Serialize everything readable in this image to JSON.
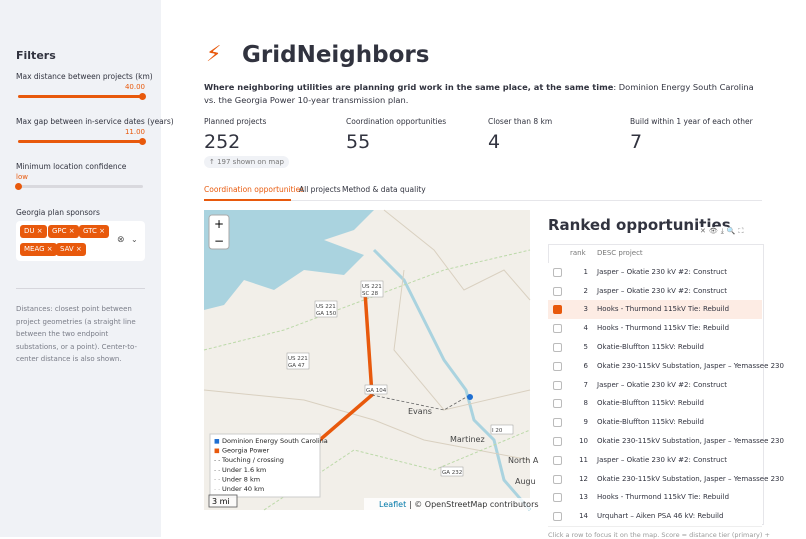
{
  "sidebar": {
    "title": "Filters",
    "sliders": [
      {
        "label": "Max distance between projects (km)",
        "value": "40.00"
      },
      {
        "label": "Max gap between in-service dates (years)",
        "value": "11.00"
      },
      {
        "label": "Minimum location confidence",
        "value": "low"
      }
    ],
    "sponsors": {
      "label": "Georgia plan sponsors",
      "chips": [
        "DU",
        "GPC",
        "GTC",
        "MEAG",
        "SAV"
      ]
    },
    "note": "Distances: closest point between project geometries (a straight line between the two endpoint substations, or a point). Center-to-center distance is also shown."
  },
  "header": {
    "title": "GridNeighbors",
    "description_bold": "Where neighboring utilities are planning grid work in the same place, at the same time",
    "description_rest": ": Dominion Energy South Carolina vs. the Georgia Power 10-year transmission plan."
  },
  "metrics": [
    {
      "label": "Planned projects",
      "value": 252,
      "delta": "197 shown on map"
    },
    {
      "label": "Coordination opportunities",
      "value": 55
    },
    {
      "label": "Closer than 8 km",
      "value": 4
    },
    {
      "label": "Build within 1 year of each other",
      "value": 7
    }
  ],
  "tabs": [
    "Coordination opportunities",
    "All projects",
    "Method & data quality"
  ],
  "map": {
    "labels": [
      [
        "US 221",
        "SC 28"
      ],
      [
        "US 221",
        "GA 150"
      ],
      [
        "US 221",
        "GA 47"
      ],
      [
        "GA 104"
      ],
      [
        "Evans"
      ],
      [
        "Martinez"
      ],
      [
        "I 20"
      ],
      [
        "GA 232"
      ],
      [
        "North A"
      ],
      [
        "Augu"
      ]
    ],
    "legend": [
      "Dominion Energy South Carolina",
      "Georgia Power",
      "Touching / crossing",
      "Under 1.6 km",
      "Under 8 km",
      "Under 40 km"
    ],
    "scale": "3 mi",
    "attribution_leaflet": "Leaflet",
    "attribution_rest": "| © OpenStreetMap contributors"
  },
  "table": {
    "title": "Ranked opportunities",
    "columns": [
      "rank",
      "DESC project"
    ],
    "rows": [
      [
        1,
        "Jasper – Okatie 230 kV #2: Construct"
      ],
      [
        2,
        "Jasper – Okatie 230 kV #2: Construct"
      ],
      [
        3,
        "Hooks - Thurmond 115kV Tie: Rebuild"
      ],
      [
        4,
        "Hooks - Thurmond 115kV Tie: Rebuild"
      ],
      [
        5,
        "Okatie-Bluffton 115kV: Rebuild"
      ],
      [
        6,
        "Okatie 230-115kV Substation, Jasper – Yemassee 230"
      ],
      [
        7,
        "Jasper – Okatie 230 kV #2: Construct"
      ],
      [
        8,
        "Okatie-Bluffton 115kV: Rebuild"
      ],
      [
        9,
        "Okatie-Bluffton 115kV: Rebuild"
      ],
      [
        10,
        "Okatie 230-115kV Substation, Jasper – Yemassee 230"
      ],
      [
        11,
        "Jasper – Okatie 230 kV #2: Construct"
      ],
      [
        12,
        "Okatie 230-115kV Substation, Jasper – Yemassee 230"
      ],
      [
        13,
        "Hooks - Thurmond 115kV Tie: Rebuild"
      ],
      [
        14,
        "Urquhart – Aiken PSA 46 kV: Rebuild"
      ]
    ],
    "selected": 2,
    "caption": "Click a row to focus it on the map. Score = distance tier (primary) +"
  }
}
